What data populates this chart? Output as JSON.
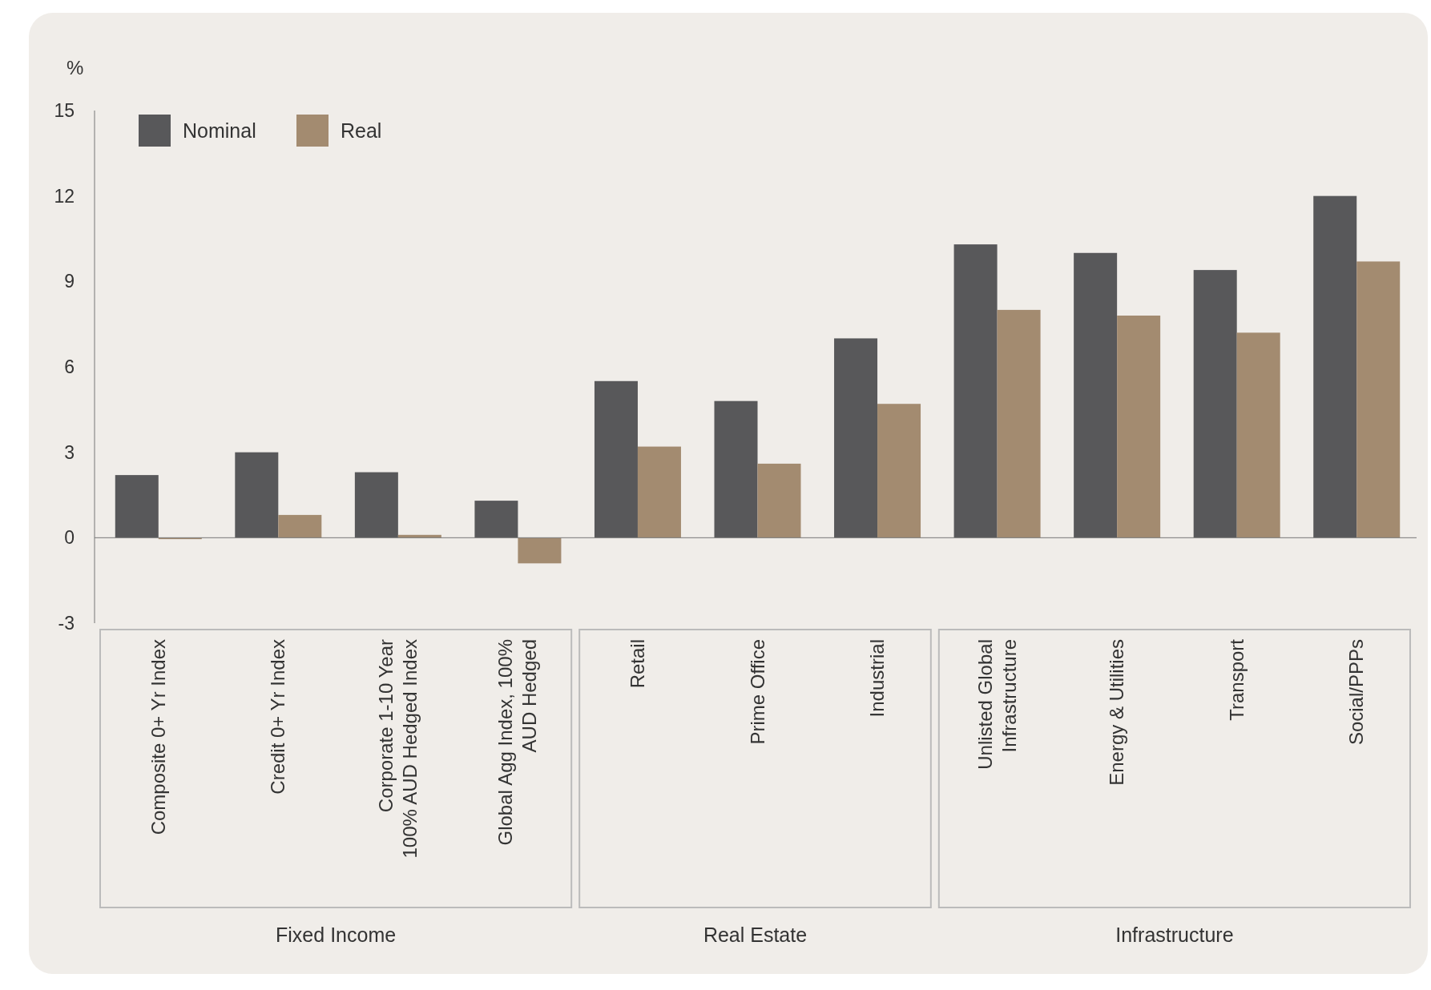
{
  "chart_data": {
    "type": "bar",
    "ylabel": "%",
    "categories": [
      "Composite 0+ Yr Index",
      "Credit 0+ Yr Index",
      "Corporate 1-10 Year 100% AUD Hedged Index",
      "Global Agg Index, 100% AUD Hedged",
      "Retail",
      "Prime Office",
      "Industrial",
      "Unlisted Global Infrastructure",
      "Energy & Utilities",
      "Transport",
      "Social/PPPs"
    ],
    "series": [
      {
        "name": "Nominal",
        "color": "#58585a",
        "values": [
          2.2,
          3.0,
          2.3,
          1.3,
          5.5,
          4.8,
          7.0,
          10.3,
          10.0,
          9.4,
          12.0
        ]
      },
      {
        "name": "Real",
        "color": "#a38b70",
        "values": [
          -0.05,
          0.8,
          0.1,
          -0.9,
          3.2,
          2.6,
          4.7,
          8.0,
          7.8,
          7.2,
          9.7
        ]
      }
    ],
    "ylim": [
      -3,
      15
    ],
    "yticks": [
      -3,
      0,
      3,
      6,
      9,
      12,
      15
    ],
    "legend": "top left",
    "annotations": [
      "Fixed Income",
      "Real Estate",
      "Infrastructure"
    ]
  }
}
